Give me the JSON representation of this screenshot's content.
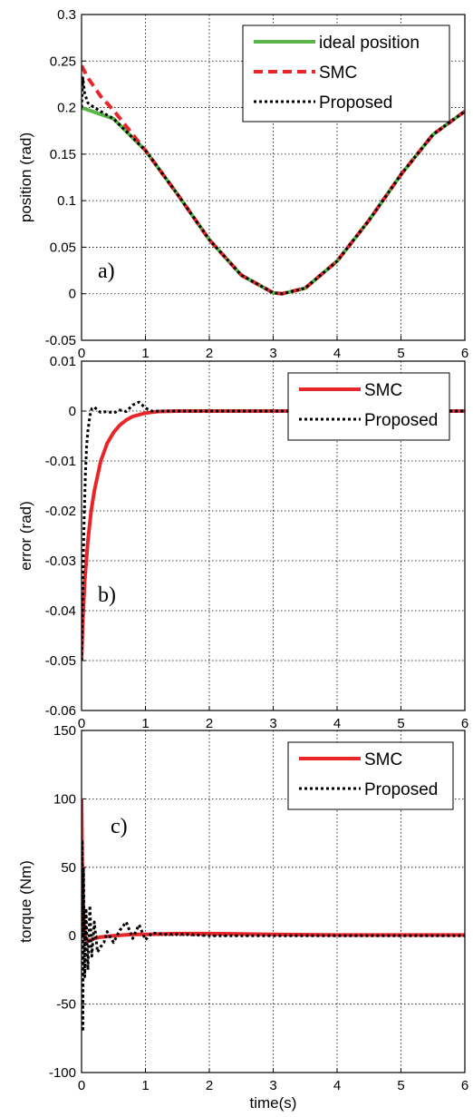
{
  "chart_data": [
    {
      "type": "line",
      "panel_label": "a)",
      "xlabel": "",
      "ylabel": "position (rad)",
      "xlim": [
        0,
        6
      ],
      "ylim": [
        -0.05,
        0.3
      ],
      "xticks": [
        "0",
        "1",
        "2",
        "3",
        "4",
        "5",
        "6"
      ],
      "yticks": [
        "-0.05",
        "0",
        "0.05",
        "0.1",
        "0.15",
        "0.2",
        "0.25",
        "0.3"
      ],
      "grid": true,
      "legend_position": "top-right",
      "series": [
        {
          "name": "ideal position",
          "color": "#5ab446",
          "style": "solid",
          "x": [
            0,
            0.5,
            1,
            1.5,
            2,
            2.5,
            3,
            3.14,
            3.5,
            4,
            4.5,
            5,
            5.5,
            6
          ],
          "y": [
            0.2,
            0.188,
            0.154,
            0.107,
            0.058,
            0.02,
            0.001,
            0.0,
            0.006,
            0.035,
            0.079,
            0.128,
            0.171,
            0.196
          ]
        },
        {
          "name": "SMC",
          "color": "#e8262a",
          "style": "dashed",
          "x": [
            0,
            0.1,
            0.2,
            0.3,
            0.5,
            0.7,
            1,
            1.5,
            2,
            2.5,
            3,
            3.14,
            3.5,
            4,
            4.5,
            5,
            5.5,
            6
          ],
          "y": [
            0.245,
            0.232,
            0.222,
            0.212,
            0.197,
            0.18,
            0.154,
            0.107,
            0.058,
            0.02,
            0.001,
            0.0,
            0.006,
            0.035,
            0.079,
            0.128,
            0.171,
            0.196
          ]
        },
        {
          "name": "Proposed",
          "color": "#000000",
          "style": "dotted",
          "x": [
            0,
            0.02,
            0.05,
            0.1,
            0.2,
            0.5,
            1,
            1.5,
            2,
            2.5,
            3,
            3.14,
            3.5,
            4,
            4.5,
            5,
            5.5,
            6
          ],
          "y": [
            0.2,
            0.232,
            0.215,
            0.205,
            0.2,
            0.188,
            0.154,
            0.107,
            0.058,
            0.02,
            0.001,
            0.0,
            0.006,
            0.035,
            0.079,
            0.128,
            0.171,
            0.196
          ]
        }
      ]
    },
    {
      "type": "line",
      "panel_label": "b)",
      "xlabel": "",
      "ylabel": "error (rad)",
      "xlim": [
        0,
        6
      ],
      "ylim": [
        -0.06,
        0.01
      ],
      "xticks": [
        "0",
        "1",
        "2",
        "3",
        "4",
        "5",
        "6"
      ],
      "yticks": [
        "-0.06",
        "-0.05",
        "-0.04",
        "-0.03",
        "-0.02",
        "-0.01",
        "0",
        "0.01"
      ],
      "grid": true,
      "legend_position": "top-right",
      "series": [
        {
          "name": "SMC",
          "color": "#e8262a",
          "style": "solid",
          "x": [
            0,
            0.02,
            0.05,
            0.1,
            0.15,
            0.2,
            0.3,
            0.4,
            0.5,
            0.6,
            0.7,
            0.8,
            1.0,
            1.2,
            1.5,
            2,
            6
          ],
          "y": [
            -0.05,
            -0.042,
            -0.034,
            -0.026,
            -0.02,
            -0.016,
            -0.01,
            -0.0065,
            -0.0043,
            -0.0028,
            -0.0018,
            -0.0011,
            -0.0004,
            -0.0001,
            0,
            0,
            0
          ]
        },
        {
          "name": "Proposed",
          "color": "#000000",
          "style": "dotted",
          "x": [
            0,
            0.02,
            0.04,
            0.06,
            0.08,
            0.1,
            0.13,
            0.16,
            0.2,
            0.25,
            0.3,
            0.4,
            0.5,
            0.6,
            0.7,
            0.8,
            0.9,
            1.0,
            1.1,
            1.3,
            6
          ],
          "y": [
            -0.05,
            -0.035,
            -0.022,
            -0.013,
            -0.007,
            -0.004,
            -0.001,
            0.0005,
            0.0008,
            0.0002,
            -0.0003,
            -0.0001,
            -0.0004,
            0.0002,
            -0.0001,
            0.0012,
            0.0018,
            0.0006,
            0,
            0,
            0
          ]
        }
      ]
    },
    {
      "type": "line",
      "panel_label": "c)",
      "xlabel": "time(s)",
      "ylabel": "torque (Nm)",
      "xlim": [
        0,
        6
      ],
      "ylim": [
        -100,
        150
      ],
      "xticks": [
        "0",
        "1",
        "2",
        "3",
        "4",
        "5",
        "6"
      ],
      "yticks": [
        "-100",
        "-50",
        "0",
        "50",
        "100",
        "150"
      ],
      "grid": true,
      "legend_position": "top-right",
      "series": [
        {
          "name": "SMC",
          "color": "#e8262a",
          "style": "solid",
          "x": [
            0,
            0.01,
            0.03,
            0.06,
            0.1,
            0.2,
            0.3,
            0.5,
            0.8,
            1.0,
            1.5,
            2,
            3,
            4,
            5,
            6
          ],
          "y": [
            100,
            55,
            15,
            -2,
            -4,
            -2,
            -1,
            0,
            1,
            1,
            1.5,
            1.5,
            1,
            0.5,
            0.5,
            0.5
          ]
        },
        {
          "name": "Proposed",
          "color": "#000000",
          "style": "dotted",
          "x": [
            0,
            0.01,
            0.02,
            0.03,
            0.05,
            0.07,
            0.1,
            0.13,
            0.16,
            0.2,
            0.25,
            0.3,
            0.35,
            0.4,
            0.5,
            0.6,
            0.7,
            0.8,
            0.9,
            1.0,
            1.1,
            1.3,
            1.6,
            2,
            3,
            4,
            5,
            6
          ],
          "y": [
            0,
            70,
            -70,
            50,
            -30,
            20,
            -25,
            22,
            -15,
            10,
            -12,
            -8,
            -5,
            3,
            -5,
            4,
            10,
            -2,
            8,
            -3,
            2,
            1,
            1,
            0,
            0,
            0,
            0,
            0
          ]
        }
      ]
    }
  ]
}
